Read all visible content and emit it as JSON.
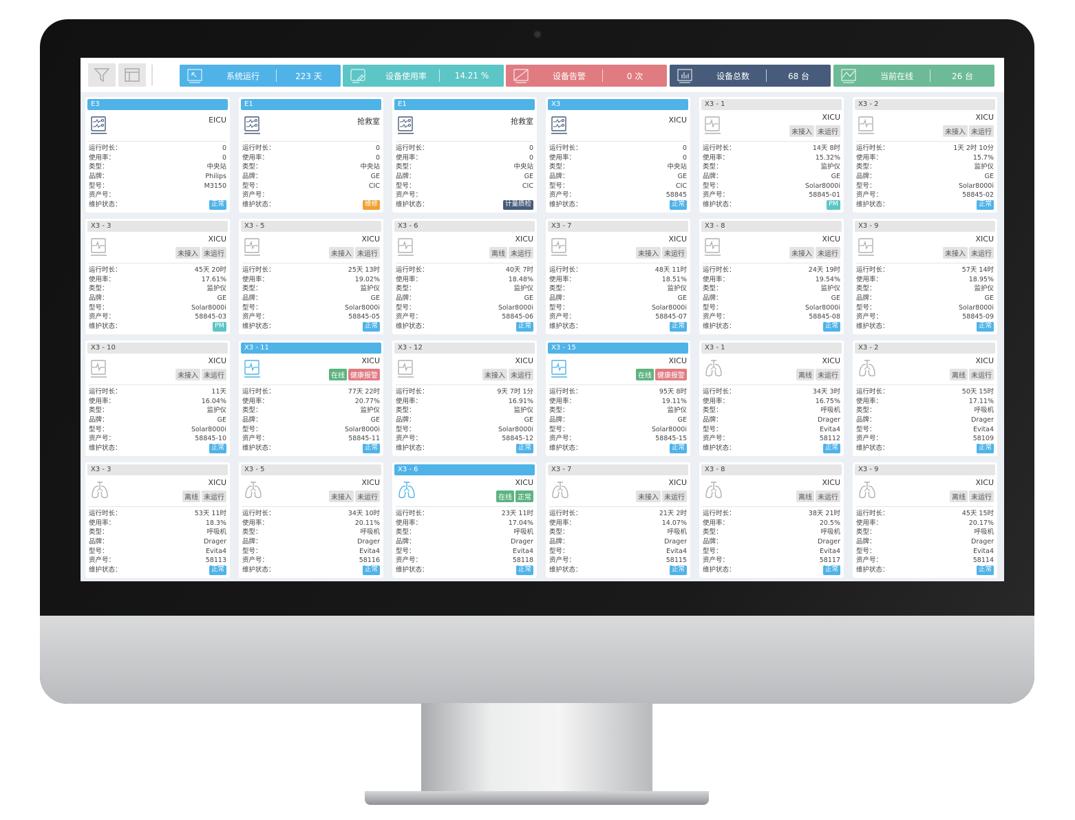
{
  "toolbar": {
    "filter_icon": "filter-icon",
    "layout_icon": "layout-icon"
  },
  "stats": [
    {
      "label": "系统运行",
      "value": "223 天",
      "color": "#4fb3e8",
      "icon": "cursor-monitor-icon"
    },
    {
      "label": "设备使用率",
      "value": "14.21 %",
      "color": "#5cc5c5",
      "icon": "edit-monitor-icon"
    },
    {
      "label": "设备告警",
      "value": "0 次",
      "color": "#e07b82",
      "icon": "alarm-monitor-icon"
    },
    {
      "label": "设备总数",
      "value": "68 台",
      "color": "#475b7a",
      "icon": "bar-chart-monitor-icon"
    },
    {
      "label": "当前在线",
      "value": "26 台",
      "color": "#6dba96",
      "icon": "check-monitor-icon"
    }
  ],
  "field_labels": [
    "运行时长：",
    "使用率：",
    "类型：",
    "品牌：",
    "型号：",
    "资产号：",
    "维护状态："
  ],
  "status_colors": {
    "正常": "#4fb3e8",
    "PM": "#5cc5c5",
    "维修": "#f0a030",
    "计量质检": "#475b7a"
  },
  "tag_colors": {
    "在线": "#5cb37f",
    "健康报警": "#e07b82",
    "正常": "#5cb37f",
    "离线": "#e3e3e3",
    "未接入": "#e3e3e3",
    "未运行": "#e3e3e3"
  },
  "cards": [
    {
      "title": "E3",
      "active": true,
      "device": "station",
      "location": "EICU",
      "tags": [],
      "values": [
        "0",
        "0",
        "中央站",
        "Philips",
        "M3150",
        ""
      ],
      "status": "正常"
    },
    {
      "title": "E1",
      "active": true,
      "device": "station",
      "location": "抢救室",
      "tags": [],
      "values": [
        "0",
        "0",
        "中央站",
        "GE",
        "CIC",
        ""
      ],
      "status": "维修"
    },
    {
      "title": "E1",
      "active": true,
      "device": "station",
      "location": "抢救室",
      "tags": [],
      "values": [
        "0",
        "0",
        "中央站",
        "GE",
        "CIC",
        ""
      ],
      "status": "计量质检"
    },
    {
      "title": "X3",
      "active": true,
      "device": "station",
      "location": "XICU",
      "tags": [],
      "values": [
        "0",
        "0",
        "中央站",
        "GE",
        "CIC",
        "58845"
      ],
      "status": "正常"
    },
    {
      "title": "X3 - 1",
      "active": false,
      "device": "monitor",
      "location": "XICU",
      "tags": [
        "未接入",
        "未运行"
      ],
      "values": [
        "14天 8时",
        "15.32%",
        "监护仪",
        "GE",
        "Solar8000i",
        "58845-01"
      ],
      "status": "PM"
    },
    {
      "title": "X3 - 2",
      "active": false,
      "device": "monitor",
      "location": "XICU",
      "tags": [
        "未接入",
        "未运行"
      ],
      "values": [
        "1天 2时 10分",
        "15.7%",
        "监护仪",
        "GE",
        "Solar8000i",
        "58845-02"
      ],
      "status": "正常"
    },
    {
      "title": "X3 - 3",
      "active": false,
      "device": "monitor",
      "location": "XICU",
      "tags": [
        "未接入",
        "未运行"
      ],
      "values": [
        "45天 20时",
        "17.61%",
        "监护仪",
        "GE",
        "Solar8000i",
        "58845-03"
      ],
      "status": "PM"
    },
    {
      "title": "X3 - 5",
      "active": false,
      "device": "monitor",
      "location": "XICU",
      "tags": [
        "未接入",
        "未运行"
      ],
      "values": [
        "25天 13时",
        "19.02%",
        "监护仪",
        "GE",
        "Solar8000i",
        "58845-05"
      ],
      "status": "正常"
    },
    {
      "title": "X3 - 6",
      "active": false,
      "device": "monitor",
      "location": "XICU",
      "tags": [
        "离线",
        "未运行"
      ],
      "values": [
        "40天 7时",
        "18.48%",
        "监护仪",
        "GE",
        "Solar8000i",
        "58845-06"
      ],
      "status": "正常"
    },
    {
      "title": "X3 - 7",
      "active": false,
      "device": "monitor",
      "location": "XICU",
      "tags": [
        "未接入",
        "未运行"
      ],
      "values": [
        "48天 11时",
        "18.51%",
        "监护仪",
        "GE",
        "Solar8000i",
        "58845-07"
      ],
      "status": "正常"
    },
    {
      "title": "X3 - 8",
      "active": false,
      "device": "monitor",
      "location": "XICU",
      "tags": [
        "未接入",
        "未运行"
      ],
      "values": [
        "24天 19时",
        "19.54%",
        "监护仪",
        "GE",
        "Solar8000i",
        "58845-08"
      ],
      "status": "正常"
    },
    {
      "title": "X3 - 9",
      "active": false,
      "device": "monitor",
      "location": "XICU",
      "tags": [
        "未接入",
        "未运行"
      ],
      "values": [
        "57天 14时",
        "18.95%",
        "监护仪",
        "GE",
        "Solar8000i",
        "58845-09"
      ],
      "status": "正常"
    },
    {
      "title": "X3 - 10",
      "active": false,
      "device": "monitor",
      "location": "XICU",
      "tags": [
        "未接入",
        "未运行"
      ],
      "values": [
        "11天",
        "16.04%",
        "监护仪",
        "GE",
        "Solar8000i",
        "58845-10"
      ],
      "status": "正常"
    },
    {
      "title": "X3 - 11",
      "active": true,
      "device": "monitor",
      "location": "XICU",
      "tags": [
        "在线",
        "健康报警"
      ],
      "values": [
        "77天 22时",
        "20.77%",
        "监护仪",
        "GE",
        "Solar8000i",
        "58845-11"
      ],
      "status": "正常"
    },
    {
      "title": "X3 - 12",
      "active": false,
      "device": "monitor",
      "location": "XICU",
      "tags": [
        "未接入",
        "未运行"
      ],
      "values": [
        "9天 7时 1分",
        "16.91%",
        "监护仪",
        "GE",
        "Solar8000i",
        "58845-12"
      ],
      "status": "正常"
    },
    {
      "title": "X3 - 15",
      "active": true,
      "device": "monitor",
      "location": "XICU",
      "tags": [
        "在线",
        "健康报警"
      ],
      "values": [
        "95天 8时",
        "19.11%",
        "监护仪",
        "GE",
        "Solar8000i",
        "58845-15"
      ],
      "status": "正常"
    },
    {
      "title": "X3 - 1",
      "active": false,
      "device": "ventilator",
      "location": "XICU",
      "tags": [
        "离线",
        "未运行"
      ],
      "values": [
        "34天 3时",
        "16.75%",
        "呼吸机",
        "Drager",
        "Evita4",
        "58112"
      ],
      "status": "正常"
    },
    {
      "title": "X3 - 2",
      "active": false,
      "device": "ventilator",
      "location": "XICU",
      "tags": [
        "离线",
        "未运行"
      ],
      "values": [
        "50天 15时",
        "17.11%",
        "呼吸机",
        "Drager",
        "Evita4",
        "58109"
      ],
      "status": "正常"
    },
    {
      "title": "X3 - 3",
      "active": false,
      "device": "ventilator",
      "location": "XICU",
      "tags": [
        "离线",
        "未运行"
      ],
      "values": [
        "53天 11时",
        "18.3%",
        "呼吸机",
        "Drager",
        "Evita4",
        "58113"
      ],
      "status": "正常"
    },
    {
      "title": "X3 - 5",
      "active": false,
      "device": "ventilator",
      "location": "XICU",
      "tags": [
        "未接入",
        "未运行"
      ],
      "values": [
        "34天 10时",
        "20.11%",
        "呼吸机",
        "Drager",
        "Evita4",
        "58116"
      ],
      "status": "正常"
    },
    {
      "title": "X3 - 6",
      "active": true,
      "device": "ventilator",
      "location": "XICU",
      "tags": [
        "在线",
        "正常"
      ],
      "values": [
        "23天 11时",
        "17.04%",
        "呼吸机",
        "Drager",
        "Evita4",
        "58118"
      ],
      "status": "正常"
    },
    {
      "title": "X3 - 7",
      "active": false,
      "device": "ventilator",
      "location": "XICU",
      "tags": [
        "未接入",
        "未运行"
      ],
      "values": [
        "21天 2时",
        "14.07%",
        "呼吸机",
        "Drager",
        "Evita4",
        "58115"
      ],
      "status": "正常"
    },
    {
      "title": "X3 - 8",
      "active": false,
      "device": "ventilator",
      "location": "XICU",
      "tags": [
        "离线",
        "未运行"
      ],
      "values": [
        "38天 21时",
        "20.5%",
        "呼吸机",
        "Drager",
        "Evita4",
        "58117"
      ],
      "status": "正常"
    },
    {
      "title": "X3 - 9",
      "active": false,
      "device": "ventilator",
      "location": "XICU",
      "tags": [
        "离线",
        "未运行"
      ],
      "values": [
        "45天 15时",
        "20.17%",
        "呼吸机",
        "Drager",
        "Evita4",
        "58114"
      ],
      "status": "正常"
    }
  ]
}
